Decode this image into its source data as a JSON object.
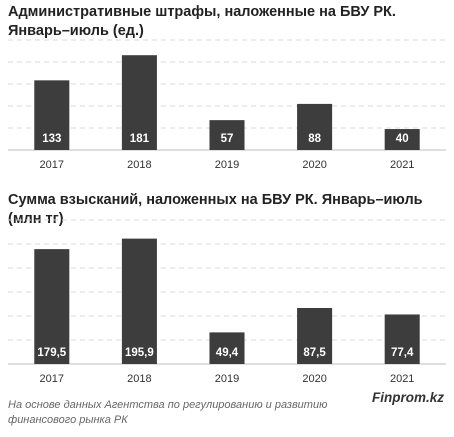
{
  "chart_data": [
    {
      "type": "bar",
      "title": "Административные штрафы, наложенные на БВУ РК. Январь–июль (ед.)",
      "categories": [
        "2017",
        "2018",
        "2019",
        "2020",
        "2021"
      ],
      "values": [
        133,
        181,
        57,
        88,
        40
      ],
      "value_labels": [
        "133",
        "181",
        "57",
        "88",
        "40"
      ],
      "ylim": [
        0,
        210
      ],
      "grid": true,
      "bar_color": "#3d3d3d"
    },
    {
      "type": "bar",
      "title": "Сумма взысканий, наложенных на БВУ РК. Январь–июль (млн тг)",
      "categories": [
        "2017",
        "2018",
        "2019",
        "2020",
        "2021"
      ],
      "values": [
        179.5,
        195.9,
        49.4,
        87.5,
        77.4
      ],
      "value_labels": [
        "179,5",
        "195,9",
        "49,4",
        "87,5",
        "77,4"
      ],
      "ylim": [
        0,
        225
      ],
      "grid": true,
      "bar_color": "#3d3d3d"
    }
  ],
  "footer": {
    "source": "На основе данных Агентства по регулированию и развитию финансового рынка РК",
    "brand": "Finprom.kz"
  }
}
